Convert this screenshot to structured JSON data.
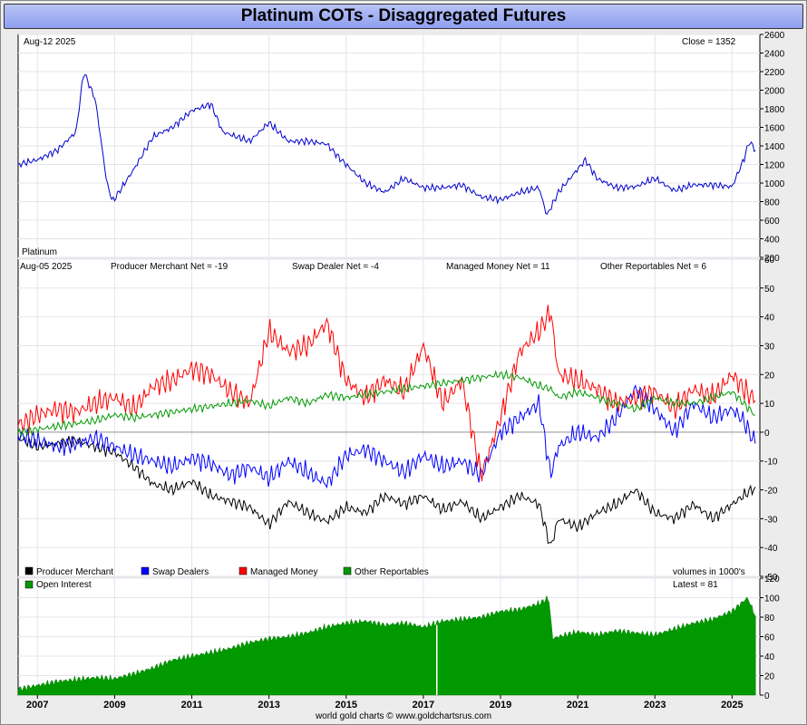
{
  "title": "Platinum COTs - Disaggregated Futures",
  "footer": "world gold charts © www.goldchartsrus.com",
  "colors": {
    "price": "#0000cc",
    "producer": "#000000",
    "swap": "#0000ff",
    "managed": "#ff0000",
    "other": "#009900",
    "oi": "#009900"
  },
  "chart_data": [
    {
      "type": "line",
      "panel": "price",
      "date_label": "Aug-12  2025",
      "close_label": "Close = 1352",
      "series_label": "Platinum",
      "ylim": [
        200,
        2600
      ],
      "yticks": [
        200,
        400,
        600,
        800,
        1000,
        1200,
        1400,
        1600,
        1800,
        2000,
        2200,
        2400,
        2600
      ],
      "x": [
        2006.5,
        2007.0,
        2007.5,
        2008.0,
        2008.2,
        2008.5,
        2008.8,
        2008.95,
        2009.5,
        2010.0,
        2010.5,
        2011.0,
        2011.5,
        2011.8,
        2012.5,
        2013.0,
        2013.5,
        2014.0,
        2014.5,
        2014.8,
        2015.5,
        2016.0,
        2016.5,
        2017.0,
        2017.5,
        2018.0,
        2018.5,
        2019.0,
        2019.5,
        2020.0,
        2020.2,
        2020.5,
        2021.0,
        2021.2,
        2021.5,
        2022.0,
        2022.5,
        2023.0,
        2023.5,
        2024.0,
        2024.5,
        2025.0,
        2025.3,
        2025.45,
        2025.61
      ],
      "y": [
        1200,
        1250,
        1350,
        1550,
        2200,
        1900,
        1000,
        800,
        1150,
        1500,
        1600,
        1780,
        1850,
        1550,
        1450,
        1650,
        1450,
        1450,
        1420,
        1280,
        1000,
        900,
        1050,
        950,
        950,
        980,
        850,
        820,
        900,
        950,
        650,
        900,
        1150,
        1250,
        1050,
        950,
        960,
        1050,
        920,
        980,
        980,
        960,
        1250,
        1450,
        1352
      ]
    },
    {
      "type": "line",
      "panel": "cot",
      "date_label": "Aug-05  2025",
      "ylim": [
        -50,
        60
      ],
      "yticks": [
        -50,
        -40,
        -30,
        -20,
        -10,
        0,
        10,
        20,
        30,
        40,
        50,
        60
      ],
      "headers": [
        "Producer Merchant Net = -19",
        "Swap Dealer Net = -4",
        "Managed Money Net = 11",
        "Other Reportables Net = 6"
      ],
      "x": [
        2006.5,
        2007.0,
        2007.5,
        2008.0,
        2008.5,
        2009.0,
        2009.5,
        2010.0,
        2010.5,
        2011.0,
        2011.5,
        2012.0,
        2012.5,
        2013.0,
        2013.5,
        2014.0,
        2014.5,
        2015.0,
        2015.5,
        2016.0,
        2016.5,
        2017.0,
        2017.5,
        2018.0,
        2018.5,
        2019.0,
        2019.5,
        2020.0,
        2020.3,
        2020.5,
        2021.0,
        2021.5,
        2022.0,
        2022.5,
        2023.0,
        2023.5,
        2024.0,
        2024.5,
        2025.0,
        2025.3,
        2025.6
      ],
      "series": [
        {
          "name": "Producer Merchant",
          "values": [
            -2,
            -5,
            -4,
            -3,
            -5,
            -7,
            -12,
            -18,
            -20,
            -17,
            -22,
            -24,
            -26,
            -32,
            -24,
            -28,
            -31,
            -26,
            -28,
            -22,
            -25,
            -22,
            -27,
            -24,
            -30,
            -26,
            -22,
            -25,
            -40,
            -30,
            -33,
            -28,
            -25,
            -20,
            -28,
            -30,
            -25,
            -30,
            -25,
            -22,
            -19
          ]
        },
        {
          "name": "Swap Dealers",
          "values": [
            -1,
            -3,
            -5,
            -4,
            -2,
            -5,
            -8,
            -10,
            -12,
            -9,
            -11,
            -15,
            -12,
            -16,
            -10,
            -14,
            -18,
            -8,
            -6,
            -10,
            -14,
            -8,
            -12,
            -10,
            -15,
            0,
            5,
            10,
            -15,
            -5,
            0,
            -2,
            5,
            15,
            8,
            0,
            10,
            5,
            8,
            4,
            -4
          ]
        },
        {
          "name": "Managed Money",
          "values": [
            2,
            6,
            8,
            7,
            10,
            12,
            8,
            16,
            18,
            22,
            20,
            14,
            10,
            35,
            28,
            30,
            38,
            18,
            12,
            18,
            14,
            30,
            10,
            18,
            -15,
            5,
            28,
            35,
            42,
            20,
            18,
            15,
            10,
            12,
            14,
            8,
            15,
            12,
            20,
            15,
            11
          ]
        },
        {
          "name": "Other Reportables",
          "values": [
            0,
            1,
            2,
            3,
            4,
            6,
            5,
            6,
            7,
            8,
            9,
            10,
            11,
            9,
            12,
            10,
            13,
            12,
            13,
            14,
            15,
            16,
            17,
            18,
            19,
            20,
            19,
            16,
            15,
            12,
            14,
            12,
            10,
            8,
            12,
            10,
            10,
            12,
            14,
            10,
            6
          ]
        }
      ],
      "legend": [
        "Producer Merchant",
        "Swap Dealers",
        "Managed Money",
        "Other Reportables"
      ],
      "units_note": "volumes in 1000's"
    },
    {
      "type": "area",
      "panel": "open_interest",
      "series_label": "Open Interest",
      "latest_label": "Latest = 81",
      "ylim": [
        0,
        120
      ],
      "yticks": [
        0,
        20,
        40,
        60,
        80,
        100,
        120
      ],
      "x": [
        2006.5,
        2007.0,
        2007.5,
        2008.0,
        2008.5,
        2009.0,
        2009.5,
        2010.0,
        2010.5,
        2011.0,
        2011.5,
        2012.0,
        2012.5,
        2013.0,
        2013.5,
        2014.0,
        2014.5,
        2015.0,
        2015.5,
        2016.0,
        2016.5,
        2017.0,
        2017.5,
        2018.0,
        2018.5,
        2019.0,
        2019.5,
        2020.0,
        2020.25,
        2020.35,
        2020.5,
        2021.0,
        2021.5,
        2022.0,
        2022.5,
        2023.0,
        2023.5,
        2024.0,
        2024.5,
        2025.0,
        2025.4,
        2025.61
      ],
      "values": [
        6,
        10,
        14,
        16,
        18,
        17,
        22,
        28,
        36,
        40,
        44,
        48,
        54,
        58,
        60,
        64,
        70,
        74,
        76,
        72,
        74,
        70,
        76,
        78,
        80,
        86,
        88,
        94,
        100,
        58,
        60,
        65,
        62,
        66,
        64,
        62,
        68,
        74,
        78,
        86,
        100,
        81
      ],
      "xticks": [
        "2007",
        "2009",
        "2011",
        "2013",
        "2015",
        "2017",
        "2019",
        "2021",
        "2023",
        "2025"
      ],
      "xtick_values": [
        2007,
        2009,
        2011,
        2013,
        2015,
        2017,
        2019,
        2021,
        2023,
        2025
      ]
    }
  ]
}
